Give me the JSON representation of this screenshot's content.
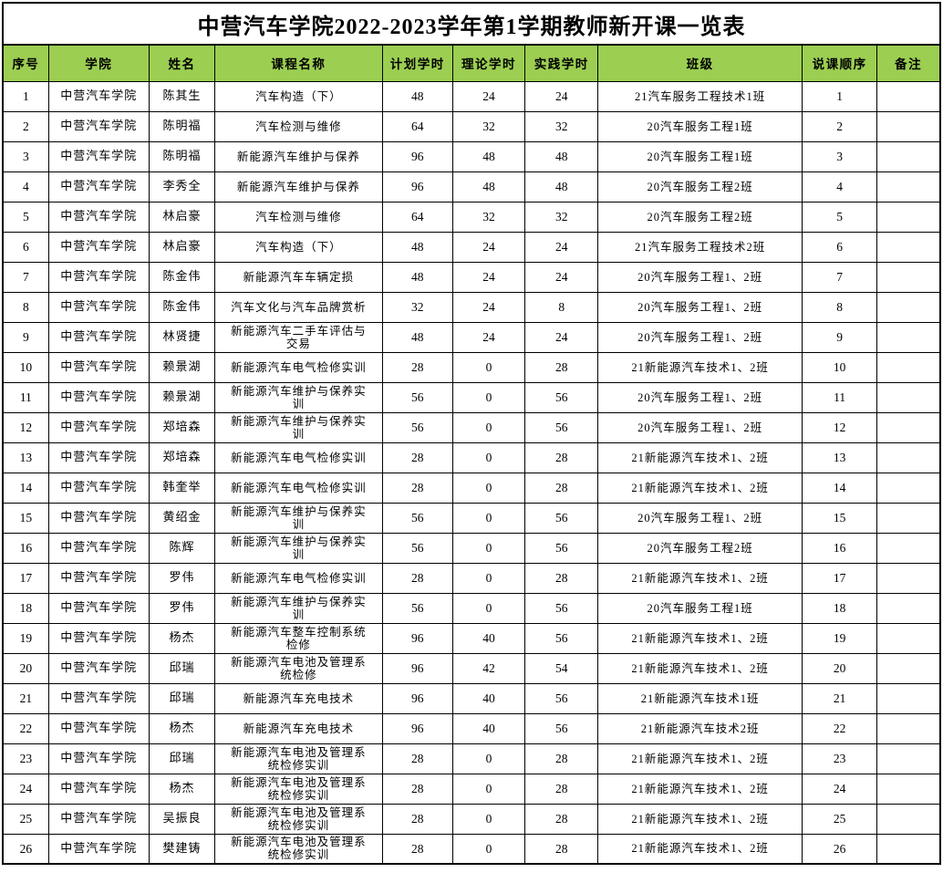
{
  "title": "中营汽车学院2022-2023学年第1学期教师新开课一览表",
  "colors": {
    "header_bg": "#9CCE52",
    "border": "#000000",
    "text": "#000000",
    "row_bg": "#FFFFFF"
  },
  "table": {
    "columns": [
      "序号",
      "学院",
      "姓名",
      "课程名称",
      "计划学时",
      "理论学时",
      "实践学时",
      "班级",
      "说课顺序",
      "备注"
    ],
    "rows": [
      [
        "1",
        "中营汽车学院",
        "陈其生",
        "汽车构造（下）",
        "48",
        "24",
        "24",
        "21汽车服务工程技术1班",
        "1",
        ""
      ],
      [
        "2",
        "中营汽车学院",
        "陈明福",
        "汽车检测与维修",
        "64",
        "32",
        "32",
        "20汽车服务工程1班",
        "2",
        ""
      ],
      [
        "3",
        "中营汽车学院",
        "陈明福",
        "新能源汽车维护与保养",
        "96",
        "48",
        "48",
        "20汽车服务工程1班",
        "3",
        ""
      ],
      [
        "4",
        "中营汽车学院",
        "李秀全",
        "新能源汽车维护与保养",
        "96",
        "48",
        "48",
        "20汽车服务工程2班",
        "4",
        ""
      ],
      [
        "5",
        "中营汽车学院",
        "林启豪",
        "汽车检测与维修",
        "64",
        "32",
        "32",
        "20汽车服务工程2班",
        "5",
        ""
      ],
      [
        "6",
        "中营汽车学院",
        "林启豪",
        "汽车构造（下）",
        "48",
        "24",
        "24",
        "21汽车服务工程技术2班",
        "6",
        ""
      ],
      [
        "7",
        "中营汽车学院",
        "陈金伟",
        "新能源汽车车辆定损",
        "48",
        "24",
        "24",
        "20汽车服务工程1、2班",
        "7",
        ""
      ],
      [
        "8",
        "中营汽车学院",
        "陈金伟",
        "汽车文化与汽车品牌赏析",
        "32",
        "24",
        "8",
        "20汽车服务工程1、2班",
        "8",
        ""
      ],
      [
        "9",
        "中营汽车学院",
        "林贤捷",
        "新能源汽车二手车评估与交易",
        "48",
        "24",
        "24",
        "20汽车服务工程1、2班",
        "9",
        ""
      ],
      [
        "10",
        "中营汽车学院",
        "赖景湖",
        "新能源汽车电气检修实训",
        "28",
        "0",
        "28",
        "21新能源汽车技术1、2班",
        "10",
        ""
      ],
      [
        "11",
        "中营汽车学院",
        "赖景湖",
        "新能源汽车维护与保养实训",
        "56",
        "0",
        "56",
        "20汽车服务工程1、2班",
        "11",
        ""
      ],
      [
        "12",
        "中营汽车学院",
        "郑培森",
        "新能源汽车维护与保养实训",
        "56",
        "0",
        "56",
        "20汽车服务工程1、2班",
        "12",
        ""
      ],
      [
        "13",
        "中营汽车学院",
        "郑培森",
        "新能源汽车电气检修实训",
        "28",
        "0",
        "28",
        "21新能源汽车技术1、2班",
        "13",
        ""
      ],
      [
        "14",
        "中营汽车学院",
        "韩奎举",
        "新能源汽车电气检修实训",
        "28",
        "0",
        "28",
        "21新能源汽车技术1、2班",
        "14",
        ""
      ],
      [
        "15",
        "中营汽车学院",
        "黄绍金",
        "新能源汽车维护与保养实训",
        "56",
        "0",
        "56",
        "20汽车服务工程1、2班",
        "15",
        ""
      ],
      [
        "16",
        "中营汽车学院",
        "陈辉",
        "新能源汽车维护与保养实训",
        "56",
        "0",
        "56",
        "20汽车服务工程2班",
        "16",
        ""
      ],
      [
        "17",
        "中营汽车学院",
        "罗伟",
        "新能源汽车电气检修实训",
        "28",
        "0",
        "28",
        "21新能源汽车技术1、2班",
        "17",
        ""
      ],
      [
        "18",
        "中营汽车学院",
        "罗伟",
        "新能源汽车维护与保养实训",
        "56",
        "0",
        "56",
        "20汽车服务工程1班",
        "18",
        ""
      ],
      [
        "19",
        "中营汽车学院",
        "杨杰",
        "新能源汽车整车控制系统检修",
        "96",
        "40",
        "56",
        "21新能源汽车技术1、2班",
        "19",
        ""
      ],
      [
        "20",
        "中营汽车学院",
        "邱瑞",
        "新能源汽车电池及管理系统检修",
        "96",
        "42",
        "54",
        "21新能源汽车技术1、2班",
        "20",
        ""
      ],
      [
        "21",
        "中营汽车学院",
        "邱瑞",
        "新能源汽车充电技术",
        "96",
        "40",
        "56",
        "21新能源汽车技术1班",
        "21",
        ""
      ],
      [
        "22",
        "中营汽车学院",
        "杨杰",
        "新能源汽车充电技术",
        "96",
        "40",
        "56",
        "21新能源汽车技术2班",
        "22",
        ""
      ],
      [
        "23",
        "中营汽车学院",
        "邱瑞",
        "新能源汽车电池及管理系统检修实训",
        "28",
        "0",
        "28",
        "21新能源汽车技术1、2班",
        "23",
        ""
      ],
      [
        "24",
        "中营汽车学院",
        "杨杰",
        "新能源汽车电池及管理系统检修实训",
        "28",
        "0",
        "28",
        "21新能源汽车技术1、2班",
        "24",
        ""
      ],
      [
        "25",
        "中营汽车学院",
        "吴振良",
        "新能源汽车电池及管理系统检修实训",
        "28",
        "0",
        "28",
        "21新能源汽车技术1、2班",
        "25",
        ""
      ],
      [
        "26",
        "中营汽车学院",
        "樊建铸",
        "新能源汽车电池及管理系统检修实训",
        "28",
        "0",
        "28",
        "21新能源汽车技术1、2班",
        "26",
        ""
      ]
    ]
  }
}
